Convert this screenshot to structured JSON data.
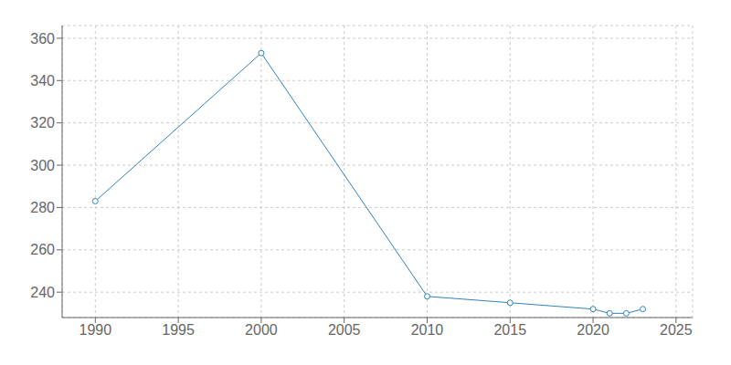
{
  "chart_data": {
    "type": "line",
    "x": [
      1990,
      2000,
      2010,
      2015,
      2020,
      2021,
      2022,
      2023
    ],
    "values": [
      283,
      353,
      238,
      235,
      232,
      230,
      230,
      232
    ],
    "xlim": [
      1988,
      2026
    ],
    "ylim": [
      228,
      366
    ],
    "xticks": [
      1990,
      1995,
      2000,
      2005,
      2010,
      2015,
      2020,
      2025
    ],
    "yticks": [
      240,
      260,
      280,
      300,
      320,
      340,
      360
    ],
    "grid": true,
    "marker": "circle"
  }
}
